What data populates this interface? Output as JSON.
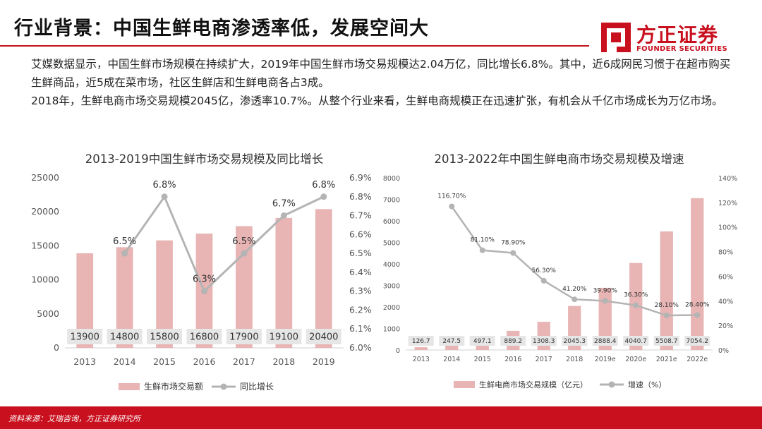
{
  "header": {
    "title": "行业背景：中国生鲜电商渗透率低，发展空间大",
    "logo_cn": "方正证券",
    "logo_en": "FOUNDER SECURITIES"
  },
  "intro": {
    "para1": "艾媒数据显示，中国生鲜市场规模在持续扩大，2019年中国生鲜市场交易规模达2.04万亿，同比增长6.8%。其中，近6成网民习惯于在超市购买生鲜商品，近5成在菜市场，社区生鲜店和生鲜电商各占3成。",
    "para2": "2018年，生鲜电商市场交易规模2045亿，渗透率10.7%。从整个行业来看，生鲜电商规模正在迅速扩张，有机会从千亿市场成长为万亿市场。"
  },
  "footer": {
    "source": "资料来源：艾瑞咨询，方正证券研究所"
  },
  "colors": {
    "accent": "#c8101e",
    "bar": "#e8b4b4",
    "line": "#b4b4b4",
    "label_bg": "#e6e6e6"
  },
  "chart_data": [
    {
      "type": "bar",
      "title": "2013-2019中国生鲜市场交易规模及同比增长",
      "categories": [
        "2013",
        "2014",
        "2015",
        "2016",
        "2017",
        "2018",
        "2019"
      ],
      "series": [
        {
          "name": "生鲜市场交易额",
          "type": "bar",
          "axis": "left",
          "values": [
            13900,
            14800,
            15800,
            16800,
            17900,
            19100,
            20400
          ]
        },
        {
          "name": "同比增长",
          "type": "line",
          "axis": "right",
          "values": [
            null,
            6.5,
            6.8,
            6.3,
            6.5,
            6.7,
            6.8
          ]
        }
      ],
      "line_labels": [
        "",
        "6.5%",
        "6.8%",
        "6.3%",
        "6.5%",
        "6.7%",
        "6.8%"
      ],
      "bar_labels": [
        "13900",
        "14800",
        "15800",
        "16800",
        "17900",
        "19100",
        "20400"
      ],
      "y_left": {
        "min": 0,
        "max": 25000,
        "ticks": [
          "0",
          "5000",
          "10000",
          "15000",
          "20000",
          "25000"
        ]
      },
      "y_right": {
        "min": 6.0,
        "max": 6.9,
        "ticks": [
          "6.0%",
          "6.1%",
          "6.2%",
          "6.3%",
          "6.4%",
          "6.5%",
          "6.6%",
          "6.7%",
          "6.8%",
          "6.9%"
        ]
      },
      "legend_position": "bottom",
      "grid": false
    },
    {
      "type": "bar",
      "title": "2013-2022年中国生鲜电商市场交易规模及增速",
      "categories": [
        "2013",
        "2014",
        "2015",
        "2016",
        "2017",
        "2018",
        "2019e",
        "2020e",
        "2021e",
        "2022e"
      ],
      "series": [
        {
          "name": "生鲜电商市场交易规模（亿元）",
          "type": "bar",
          "axis": "left",
          "values": [
            126.7,
            247.5,
            497.1,
            889.2,
            1308.3,
            2045.3,
            2888.4,
            4040.7,
            5508.7,
            7054.2
          ]
        },
        {
          "name": "增速（%）",
          "type": "line",
          "axis": "right",
          "values": [
            null,
            116.7,
            81.1,
            78.9,
            56.3,
            41.2,
            39.9,
            36.3,
            28.1,
            28.4
          ]
        }
      ],
      "line_labels": [
        "",
        "116.70%",
        "81.10%",
        "78.90%",
        "56.30%",
        "41.20%",
        "39.90%",
        "36.30%",
        "28.10%",
        "28.40%"
      ],
      "bar_labels": [
        "126.7",
        "247.5",
        "497.1",
        "889.2",
        "1308.3",
        "2045.3",
        "2888.4",
        "4040.7",
        "5508.7",
        "7054.2"
      ],
      "y_left": {
        "min": 0,
        "max": 8000,
        "ticks": [
          "0",
          "1000",
          "2000",
          "3000",
          "4000",
          "5000",
          "6000",
          "7000",
          "8000"
        ]
      },
      "y_right": {
        "min": 0,
        "max": 140,
        "ticks": [
          "0%",
          "20%",
          "40%",
          "60%",
          "80%",
          "100%",
          "120%",
          "140%"
        ]
      },
      "legend_position": "bottom",
      "grid": false
    }
  ]
}
